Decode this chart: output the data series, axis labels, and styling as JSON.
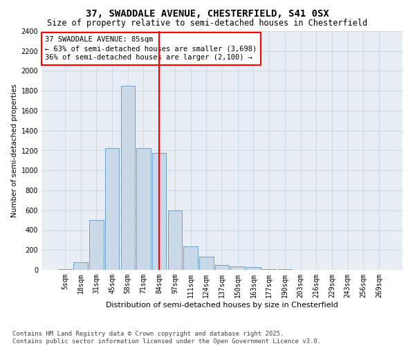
{
  "title1": "37, SWADDALE AVENUE, CHESTERFIELD, S41 0SX",
  "title2": "Size of property relative to semi-detached houses in Chesterfield",
  "xlabel": "Distribution of semi-detached houses by size in Chesterfield",
  "ylabel": "Number of semi-detached properties",
  "bar_labels": [
    "5sqm",
    "18sqm",
    "31sqm",
    "45sqm",
    "58sqm",
    "71sqm",
    "84sqm",
    "97sqm",
    "111sqm",
    "124sqm",
    "137sqm",
    "150sqm",
    "163sqm",
    "177sqm",
    "190sqm",
    "203sqm",
    "216sqm",
    "229sqm",
    "243sqm",
    "256sqm",
    "269sqm"
  ],
  "bar_values": [
    10,
    75,
    500,
    1225,
    1850,
    1225,
    1175,
    600,
    235,
    130,
    50,
    35,
    25,
    10,
    5,
    3,
    2,
    1,
    1,
    0,
    0
  ],
  "bar_color": "#c9d9e8",
  "bar_edge_color": "#6a9fc8",
  "vline_color": "red",
  "vline_index": 6,
  "annotation_text": "37 SWADDALE AVENUE: 85sqm\n← 63% of semi-detached houses are smaller (3,698)\n36% of semi-detached houses are larger (2,100) →",
  "annotation_box_color": "white",
  "annotation_box_edge_color": "red",
  "ylim": [
    0,
    2400
  ],
  "yticks": [
    0,
    200,
    400,
    600,
    800,
    1000,
    1200,
    1400,
    1600,
    1800,
    2000,
    2200,
    2400
  ],
  "grid_color": "#c8d4de",
  "bg_color": "#e8eef4",
  "footnote": "Contains HM Land Registry data © Crown copyright and database right 2025.\nContains public sector information licensed under the Open Government Licence v3.0.",
  "title1_fontsize": 10,
  "title2_fontsize": 8.5,
  "xlabel_fontsize": 8,
  "ylabel_fontsize": 7.5,
  "tick_fontsize": 7,
  "annotation_fontsize": 7.5,
  "footnote_fontsize": 6.5
}
